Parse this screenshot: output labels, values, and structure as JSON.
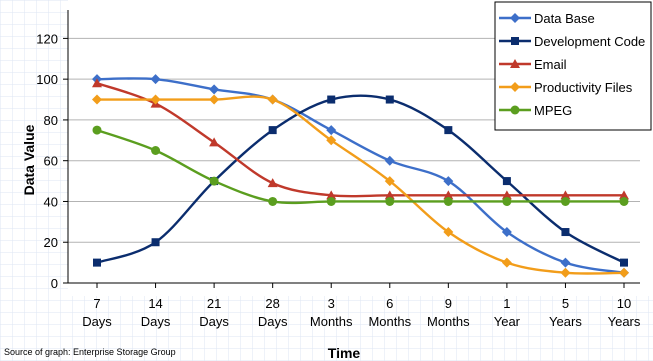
{
  "chart_data": {
    "type": "line",
    "title": "",
    "xlabel": "Time",
    "ylabel": "Data Value",
    "ylim": [
      0,
      130
    ],
    "yticks": [
      0,
      20,
      40,
      60,
      80,
      100,
      120
    ],
    "grid": true,
    "legend": "top-right",
    "categories": [
      [
        "7",
        "Days"
      ],
      [
        "14",
        "Days"
      ],
      [
        "21",
        "Days"
      ],
      [
        "28",
        "Days"
      ],
      [
        "3",
        "Months"
      ],
      [
        "6",
        "Months"
      ],
      [
        "9",
        "Months"
      ],
      [
        "1",
        "Year"
      ],
      [
        "5",
        "Years"
      ],
      [
        "10",
        "Years"
      ]
    ],
    "series": [
      {
        "name": "Data Base",
        "color": "#3d6fc9",
        "marker": "diamond",
        "values": [
          100,
          100,
          95,
          90,
          75,
          60,
          50,
          25,
          10,
          5
        ]
      },
      {
        "name": "Development Code",
        "color": "#0b2d6e",
        "marker": "square",
        "values": [
          10,
          20,
          50,
          75,
          90,
          90,
          75,
          50,
          25,
          10
        ]
      },
      {
        "name": "Email",
        "color": "#c0392b",
        "marker": "triangle",
        "values": [
          98,
          88,
          69,
          49,
          43,
          43,
          43,
          43,
          43,
          43
        ]
      },
      {
        "name": "Productivity Files",
        "color": "#f29d1a",
        "marker": "diamond",
        "values": [
          90,
          90,
          90,
          90,
          70,
          50,
          25,
          10,
          5,
          5
        ]
      },
      {
        "name": "MPEG",
        "color": "#5b9e1f",
        "marker": "circle",
        "values": [
          75,
          65,
          50,
          40,
          40,
          40,
          40,
          40,
          40,
          40
        ]
      }
    ],
    "source": "Source of graph: Enterprise Storage Group"
  }
}
